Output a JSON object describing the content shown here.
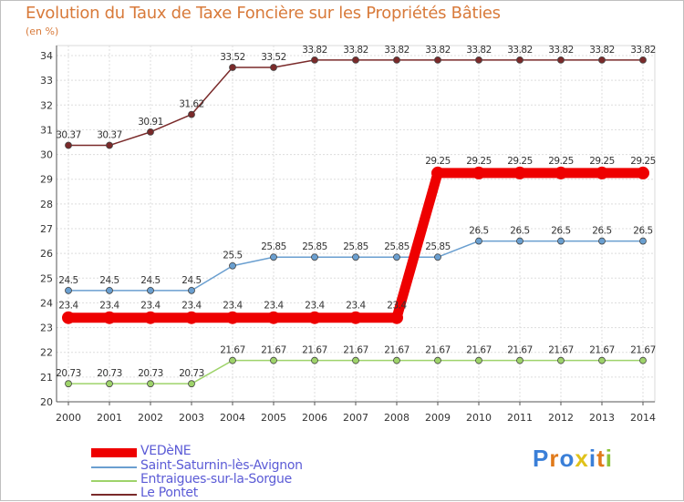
{
  "title": "Evolution du Taux de Taxe Foncière sur les Propriétés Bâties",
  "unit": "(en %)",
  "logo": "Proxiti",
  "chart_data": {
    "type": "line",
    "title": "Evolution du Taux de Taxe Foncière sur les Propriétés Bâties",
    "ylabel": "(en %)",
    "xlabel": "",
    "ylim": [
      20,
      34
    ],
    "yticks": [
      20,
      21,
      22,
      23,
      24,
      25,
      26,
      27,
      28,
      29,
      30,
      31,
      32,
      33,
      34
    ],
    "x": [
      "2000",
      "2001",
      "2002",
      "2003",
      "2004",
      "2005",
      "2006",
      "2007",
      "2008",
      "2009",
      "2010",
      "2011",
      "2012",
      "2013",
      "2014"
    ],
    "grid": true,
    "legend": "bottom-left",
    "series": [
      {
        "name": "Le Pontet",
        "color": "#7a2a2a",
        "values": [
          30.37,
          30.37,
          30.91,
          31.62,
          33.52,
          33.52,
          33.82,
          33.82,
          33.82,
          33.82,
          33.82,
          33.82,
          33.82,
          33.82,
          33.82
        ],
        "labels": [
          "30.37",
          "30.37",
          "30.91",
          "31.62",
          "33.52",
          "33.52",
          "33.82",
          "33.82",
          "33.82",
          "33.82",
          "33.82",
          "33.82",
          "33.82",
          "33.82",
          "33.82"
        ]
      },
      {
        "name": "Saint-Saturnin-lès-Avignon",
        "color": "#6a9fd0",
        "values": [
          24.5,
          24.5,
          24.5,
          24.5,
          25.5,
          25.85,
          25.85,
          25.85,
          25.85,
          25.85,
          26.5,
          26.5,
          26.5,
          26.5,
          26.5
        ],
        "labels": [
          "24.5",
          "24.5",
          "24.5",
          "24.5",
          "25.5",
          "25.85",
          "25.85",
          "25.85",
          "25.85",
          "25.85",
          "26.5",
          "26.5",
          "26.5",
          "26.5",
          "26.5"
        ]
      },
      {
        "name": "Entraigues-sur-la-Sorgue",
        "color": "#9ed36a",
        "values": [
          20.73,
          20.73,
          20.73,
          20.73,
          21.67,
          21.67,
          21.67,
          21.67,
          21.67,
          21.67,
          21.67,
          21.67,
          21.67,
          21.67,
          21.67
        ],
        "labels": [
          "20.73",
          "20.73",
          "20.73",
          "20.73",
          "21.67",
          "21.67",
          "21.67",
          "21.67",
          "21.67",
          "21.67",
          "21.67",
          "21.67",
          "21.67",
          "21.67",
          "21.67"
        ]
      },
      {
        "name": "VEDèNE",
        "color": "#ee0000",
        "values": [
          23.4,
          23.4,
          23.4,
          23.4,
          23.4,
          23.4,
          23.4,
          23.4,
          23.4,
          29.25,
          29.25,
          29.25,
          29.25,
          29.25,
          29.25
        ],
        "labels": [
          "23.4",
          "23.4",
          "23.4",
          "23.4",
          "23.4",
          "23.4",
          "23.4",
          "23.4",
          "23.4",
          "29.25",
          "29.25",
          "29.25",
          "29.25",
          "29.25",
          "29.25"
        ]
      }
    ],
    "legend_order": [
      "VEDèNE",
      "Saint-Saturnin-lès-Avignon",
      "Entraigues-sur-la-Sorgue",
      "Le Pontet"
    ]
  }
}
